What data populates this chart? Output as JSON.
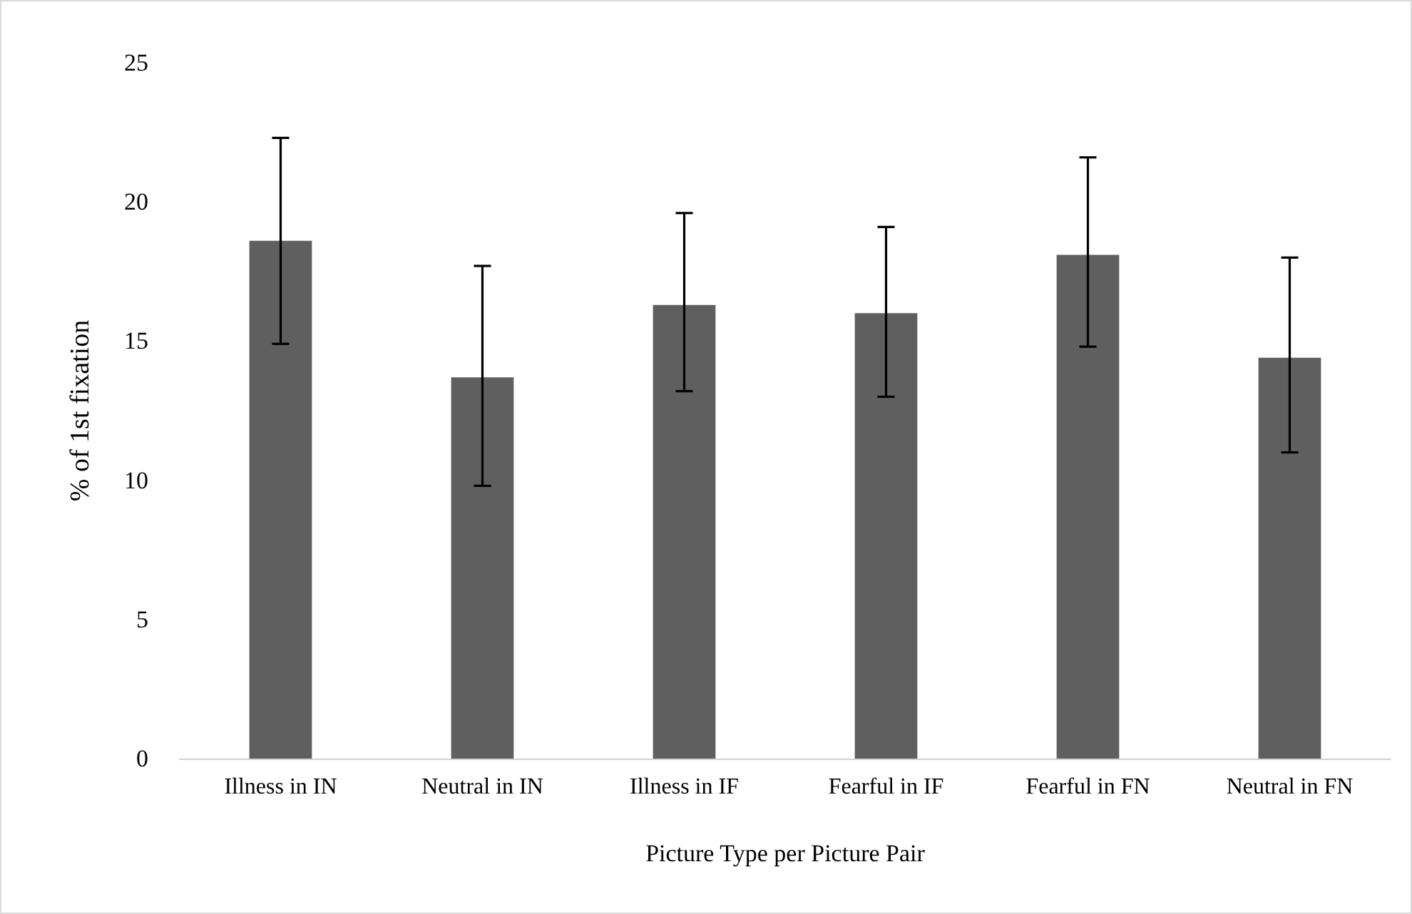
{
  "chart_data": {
    "type": "bar",
    "xlabel": "Picture Type per Picture Pair",
    "ylabel": "% of 1st fixation",
    "categories": [
      "Illness in IN",
      "Neutral in IN",
      "Illness in IF",
      "Fearful in IF",
      "Fearful in FN",
      "Neutral in FN"
    ],
    "values": [
      18.6,
      13.7,
      16.3,
      16.0,
      18.1,
      14.4
    ],
    "errors": [
      [
        14.9,
        22.3
      ],
      [
        9.8,
        17.7
      ],
      [
        13.2,
        19.6
      ],
      [
        13.0,
        19.1
      ],
      [
        14.8,
        21.6
      ],
      [
        11.0,
        18.0
      ]
    ],
    "color": "#5f5f5f",
    "ylim": [
      0,
      25
    ],
    "yticks": [
      0,
      5,
      10,
      15,
      20,
      25
    ],
    "grid": false
  }
}
